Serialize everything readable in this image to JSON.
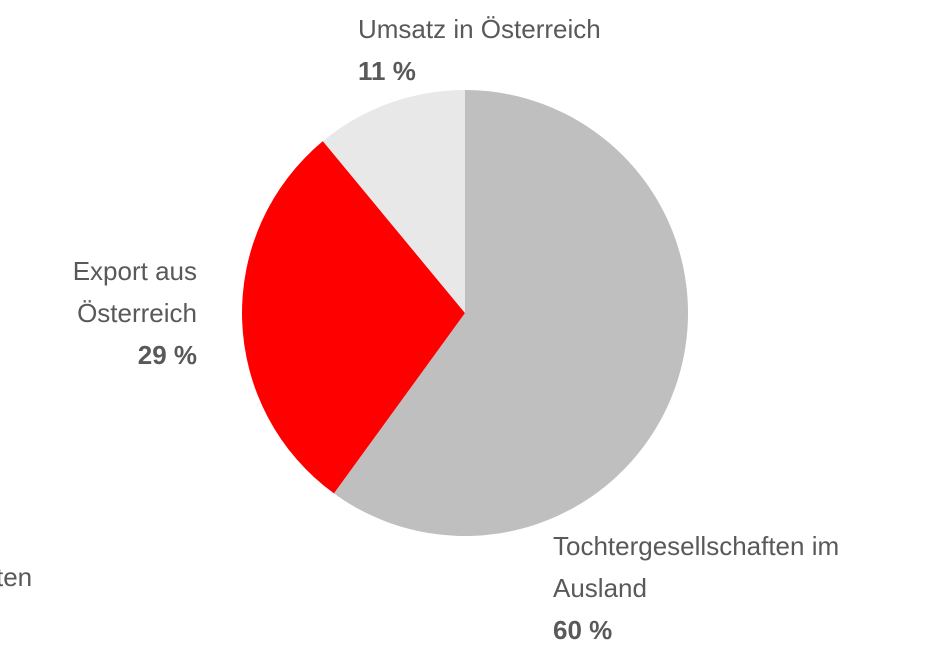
{
  "chart_data": {
    "type": "pie",
    "categories": [
      "Tochtergesellschaften im Ausland",
      "Export aus Österreich",
      "Umsatz in Österreich"
    ],
    "values": [
      60,
      29,
      11
    ],
    "value_labels": [
      "60 %",
      "29 %",
      "11 %"
    ],
    "colors": [
      "#bfbfbf",
      "#ff0000",
      "#e8e8e8"
    ],
    "annotation": "ten"
  }
}
